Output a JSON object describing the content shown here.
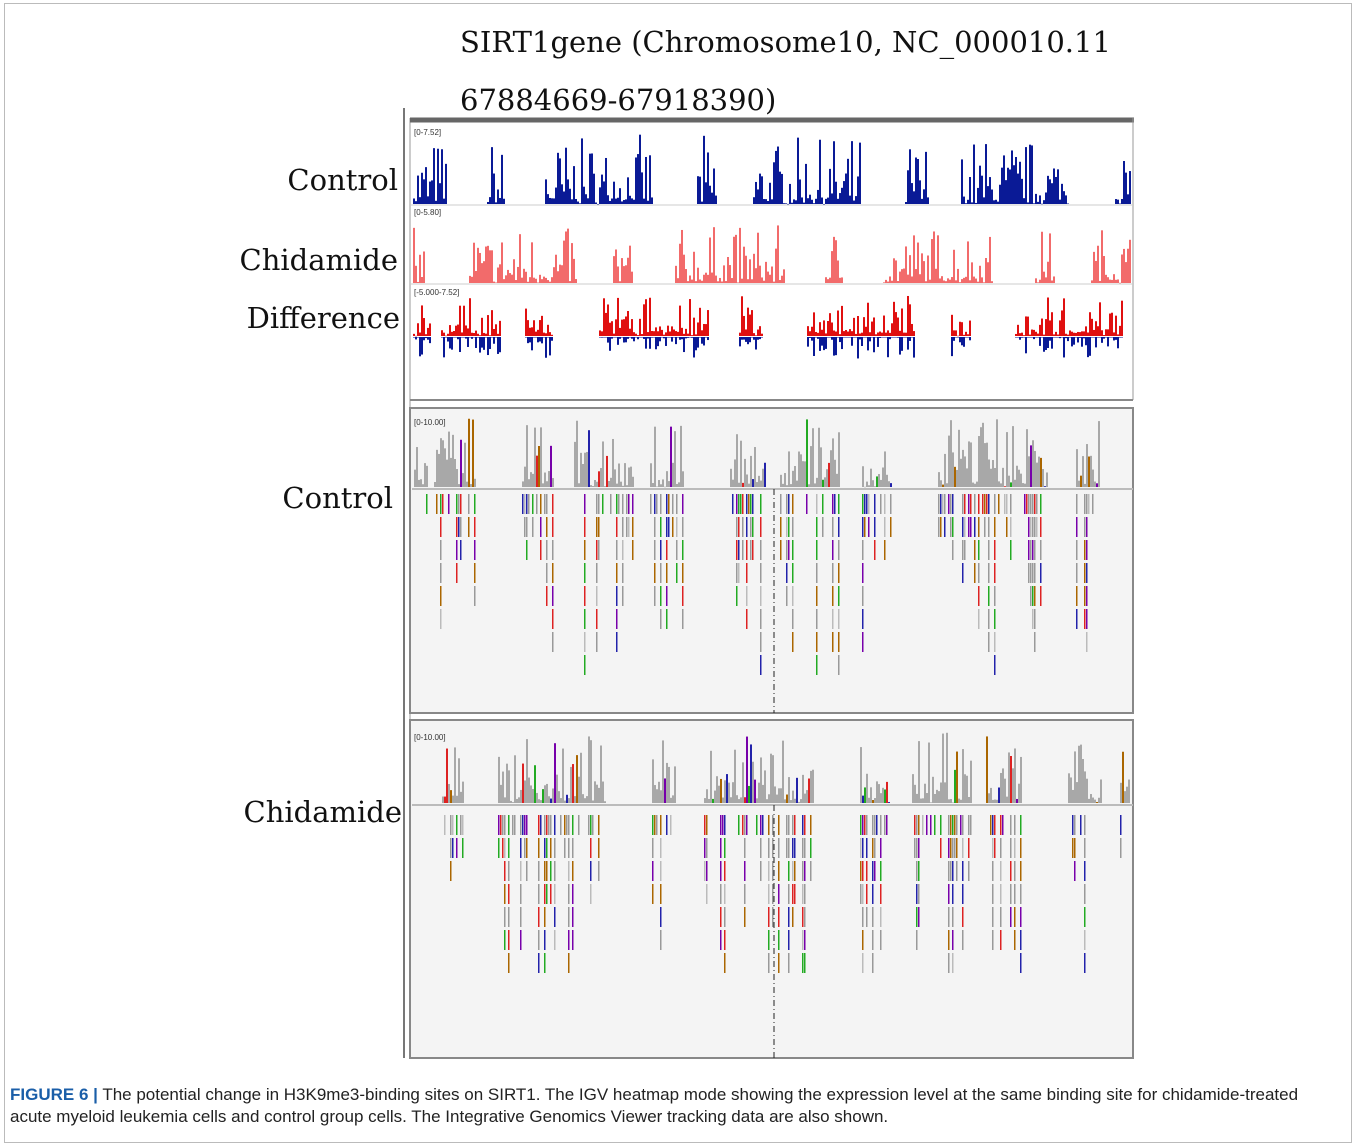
{
  "header": {
    "title_line1": "SIRT1gene (Chromosome10, NC_000010.11",
    "title_line2": "67884669-67918390)"
  },
  "tracks": [
    {
      "label": "Control",
      "range": "[0-7.52]"
    },
    {
      "label": "Chidamide",
      "range": "[0-5.80]"
    },
    {
      "label": "Difference",
      "range": "[-5.000-7.52]"
    }
  ],
  "alignments": [
    {
      "label": "Control",
      "range": "[0-10.00]"
    },
    {
      "label": "Chidamide",
      "range": "[0-10.00]"
    }
  ],
  "caption": {
    "label": "FIGURE 6 |",
    "text": "The potential change in H3K9me3-binding sites on SIRT1. The IGV heatmap mode showing the expression level at the same binding site for chidamide-treated acute myeloid leukemia cells and control group cells. The Integrative Genomics Viewer tracking data are also shown."
  }
}
